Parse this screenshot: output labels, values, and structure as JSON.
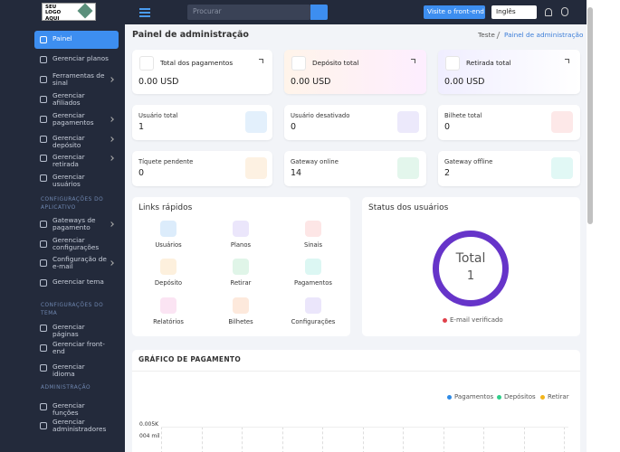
{
  "sidebar": {
    "logo": "SEU LOGO AQUI",
    "groups": [
      {
        "title": null,
        "items": [
          {
            "label": "Painel",
            "arrow": false
          },
          {
            "label": "Gerenciar planos",
            "arrow": false
          },
          {
            "label": "Ferramentas de sinal",
            "arrow": true
          },
          {
            "label": "Gerenciar afiliados",
            "arrow": false
          },
          {
            "label": "Gerenciar pagamentos",
            "arrow": true
          },
          {
            "label": "Gerenciar depósito",
            "arrow": true
          },
          {
            "label": "Gerenciar retirada",
            "arrow": true
          },
          {
            "label": "Gerenciar usuários",
            "arrow": false
          }
        ]
      },
      {
        "title": "CONFIGURAÇÕES DO APLICATIVO",
        "items": [
          {
            "label": "Gateways de pagamento",
            "arrow": true
          },
          {
            "label": "Gerenciar configurações",
            "arrow": false
          },
          {
            "label": "Configuração de e-mail",
            "arrow": true
          },
          {
            "label": "Gerenciar tema",
            "arrow": false
          }
        ]
      },
      {
        "title": "CONFIGURAÇÕES DO TEMA",
        "items": [
          {
            "label": "Gerenciar páginas",
            "arrow": false
          },
          {
            "label": "Gerenciar front-end",
            "arrow": false
          },
          {
            "label": "Gerenciar idioma",
            "arrow": false
          }
        ]
      },
      {
        "title": "ADMINISTRAÇÃO",
        "items": [
          {
            "label": "Gerenciar funções",
            "arrow": false
          },
          {
            "label": "Gerenciar administradores",
            "arrow": false
          }
        ]
      }
    ]
  },
  "topbar": {
    "search_placeholder": "Procurar",
    "frontend_button": "Visite o front-end",
    "language": "Inglês"
  },
  "header": {
    "title": "Painel de administração",
    "breadcrumb": [
      "Teste",
      "Painel de administração"
    ]
  },
  "balance_cards": [
    {
      "label": "Total dos pagamentos",
      "value": "0.00 USD"
    },
    {
      "label": "Depósito total",
      "value": "0.00 USD"
    },
    {
      "label": "Retirada total",
      "value": "0.00 USD"
    }
  ],
  "stat_cards": [
    {
      "label": "Usuário total",
      "value": "1"
    },
    {
      "label": "Usuário desativado",
      "value": "0"
    },
    {
      "label": "Bilhete total",
      "value": "0"
    },
    {
      "label": "Tíquete pendente",
      "value": "0"
    },
    {
      "label": "Gateway online",
      "value": "14"
    },
    {
      "label": "Gateway offline",
      "value": "2"
    }
  ],
  "quick_links": {
    "title": "Links rápidos",
    "items": [
      "Usuários",
      "Planos",
      "Sinais",
      "Depósito",
      "Retirar",
      "Pagamentos",
      "Relatórios",
      "Bilhetes",
      "Configurações"
    ]
  },
  "user_status": {
    "title": "Status dos usuários",
    "center_label": "Total",
    "center_value": "1",
    "legend": "E-mail verificado"
  },
  "payment_chart": {
    "title": "GRÁFICO DE PAGAMENTO",
    "legend": [
      "Pagamentos",
      "Depósitos",
      "Retirar"
    ],
    "axis_labels": [
      "0.005K",
      "004 mil"
    ]
  }
}
